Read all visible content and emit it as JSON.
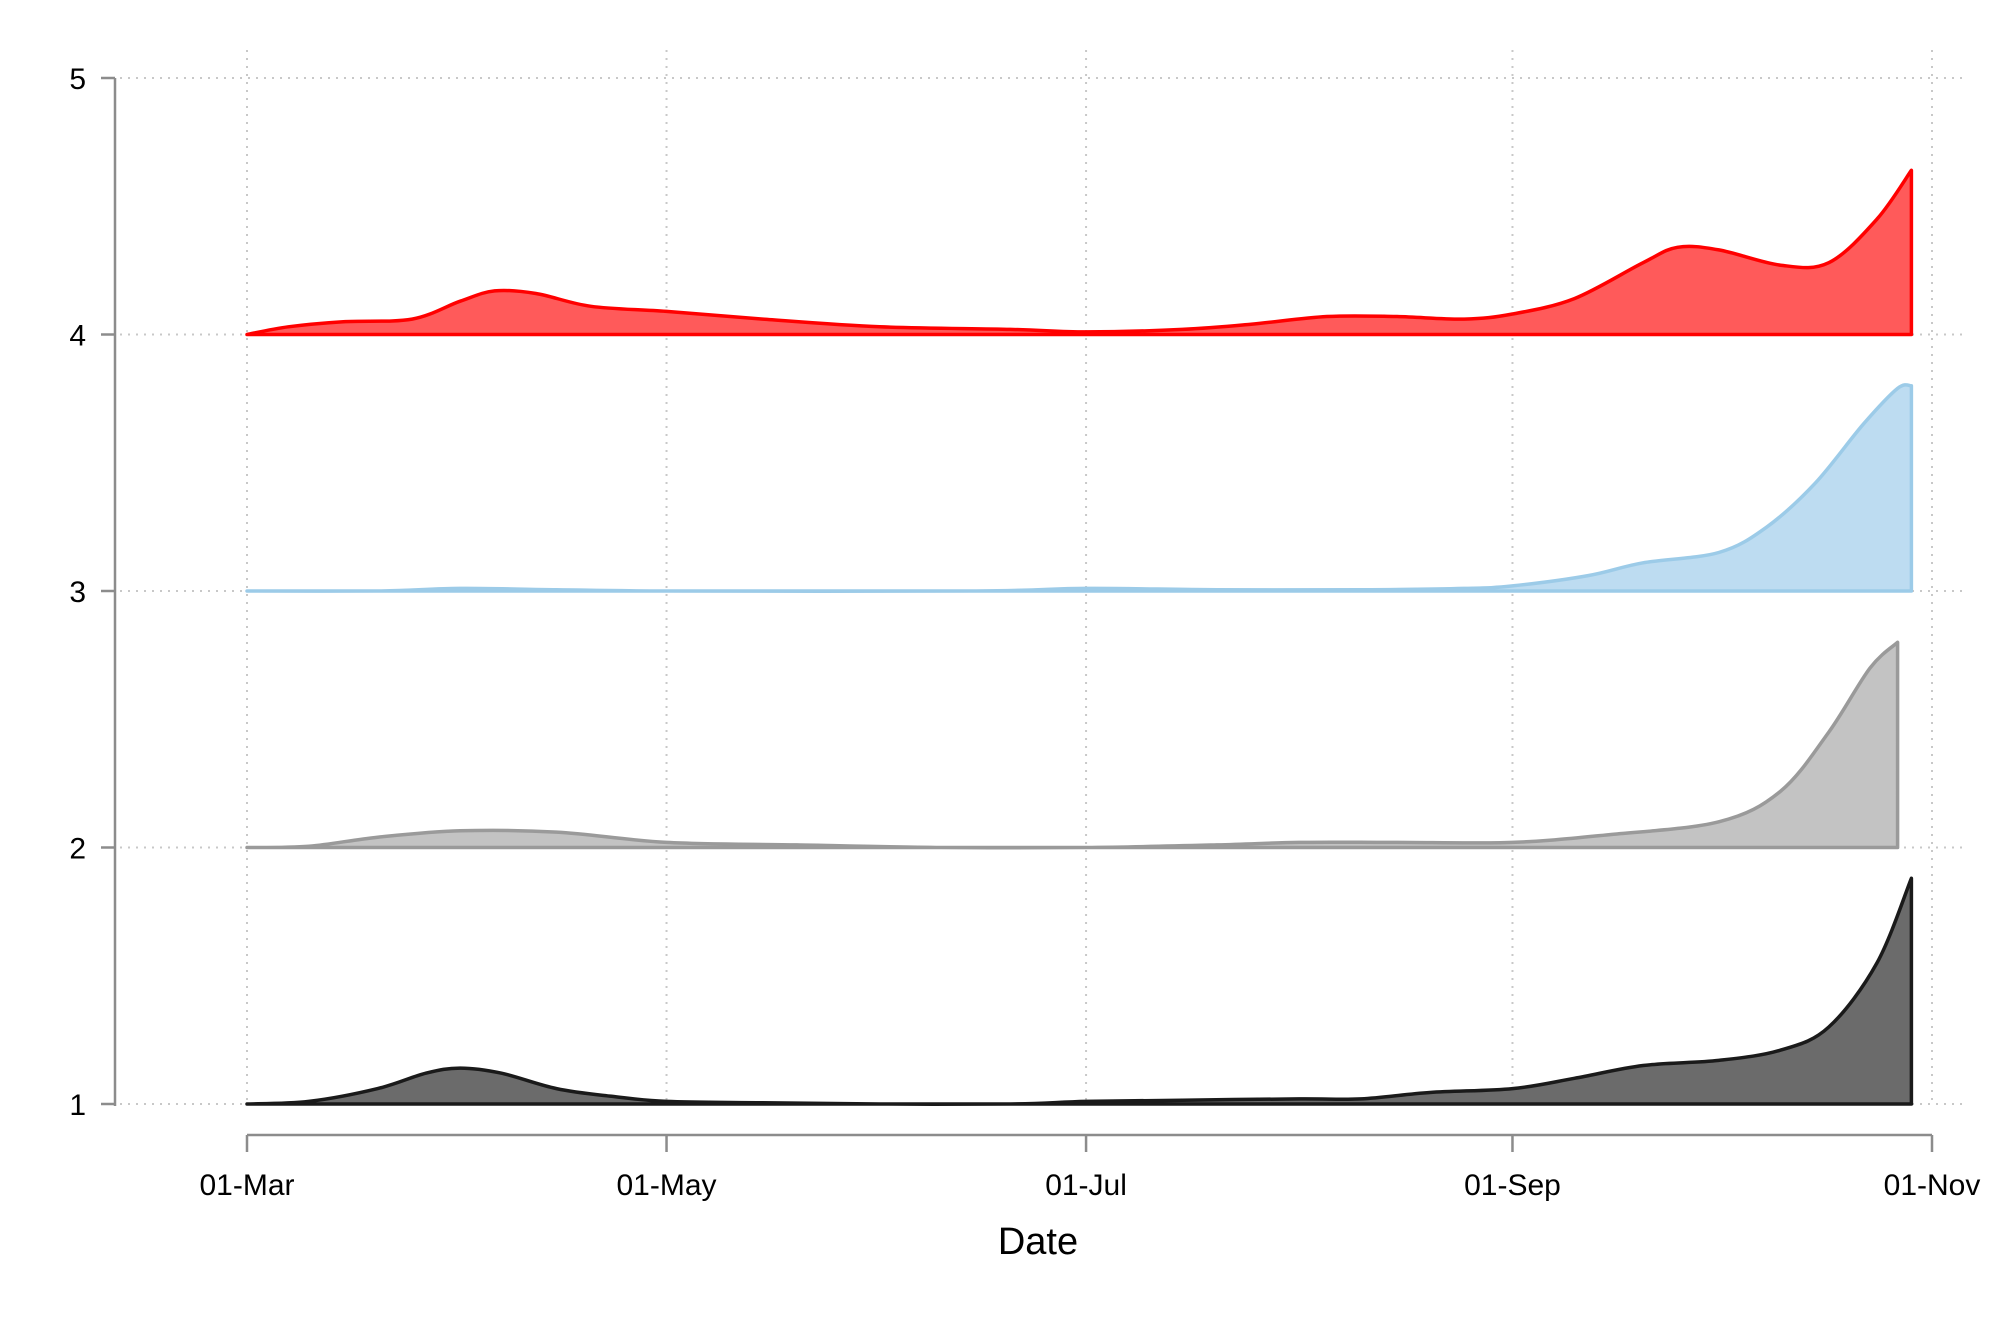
{
  "chart_data": {
    "type": "area",
    "title": "",
    "xlabel": "Date",
    "ylabel": "",
    "ylim": [
      1,
      5
    ],
    "yticks": [
      "1",
      "2",
      "3",
      "4",
      "5"
    ],
    "x_tick_labels": [
      "01-Mar",
      "01-May",
      "01-Jul",
      "01-Sep",
      "01-Nov"
    ],
    "x_tick_dates": [
      "2020-03-01",
      "2020-05-01",
      "2020-07-01",
      "2020-09-01",
      "2020-11-01"
    ],
    "grid": true,
    "legend": "none",
    "series": [
      {
        "baseline": 1,
        "fill": "#6b6b6b",
        "stroke": "#1a1a1a",
        "points": [
          [
            "2020-03-01",
            1.0
          ],
          [
            "2020-03-10",
            1.01
          ],
          [
            "2020-03-20",
            1.06
          ],
          [
            "2020-03-27",
            1.12
          ],
          [
            "2020-04-01",
            1.14
          ],
          [
            "2020-04-07",
            1.12
          ],
          [
            "2020-04-15",
            1.06
          ],
          [
            "2020-04-23",
            1.03
          ],
          [
            "2020-05-01",
            1.01
          ],
          [
            "2020-05-15",
            1.005
          ],
          [
            "2020-06-01",
            1.0
          ],
          [
            "2020-06-20",
            1.0
          ],
          [
            "2020-07-01",
            1.01
          ],
          [
            "2020-07-15",
            1.015
          ],
          [
            "2020-08-01",
            1.02
          ],
          [
            "2020-08-10",
            1.02
          ],
          [
            "2020-08-20",
            1.045
          ],
          [
            "2020-09-01",
            1.06
          ],
          [
            "2020-09-10",
            1.1
          ],
          [
            "2020-09-20",
            1.15
          ],
          [
            "2020-10-01",
            1.17
          ],
          [
            "2020-10-10",
            1.21
          ],
          [
            "2020-10-17",
            1.3
          ],
          [
            "2020-10-24",
            1.55
          ],
          [
            "2020-10-29",
            1.88
          ]
        ]
      },
      {
        "baseline": 2,
        "fill": "#c3c3c3",
        "stroke": "#9a9a9a",
        "points": [
          [
            "2020-03-01",
            2.0
          ],
          [
            "2020-03-10",
            2.005
          ],
          [
            "2020-03-20",
            2.04
          ],
          [
            "2020-04-01",
            2.065
          ],
          [
            "2020-04-15",
            2.06
          ],
          [
            "2020-05-01",
            2.02
          ],
          [
            "2020-05-20",
            2.01
          ],
          [
            "2020-06-10",
            2.0
          ],
          [
            "2020-07-01",
            2.0
          ],
          [
            "2020-07-20",
            2.01
          ],
          [
            "2020-08-01",
            2.02
          ],
          [
            "2020-08-15",
            2.02
          ],
          [
            "2020-09-01",
            2.02
          ],
          [
            "2020-09-15",
            2.05
          ],
          [
            "2020-10-01",
            2.1
          ],
          [
            "2020-10-10",
            2.22
          ],
          [
            "2020-10-17",
            2.45
          ],
          [
            "2020-10-23",
            2.7
          ],
          [
            "2020-10-27",
            2.8
          ]
        ]
      },
      {
        "baseline": 3,
        "fill": "#bddcf1",
        "stroke": "#9ccbe8",
        "points": [
          [
            "2020-03-01",
            3.0
          ],
          [
            "2020-03-20",
            3.0
          ],
          [
            "2020-04-01",
            3.01
          ],
          [
            "2020-04-15",
            3.005
          ],
          [
            "2020-05-01",
            3.0
          ],
          [
            "2020-06-15",
            3.0
          ],
          [
            "2020-07-01",
            3.01
          ],
          [
            "2020-07-20",
            3.005
          ],
          [
            "2020-08-10",
            3.005
          ],
          [
            "2020-08-25",
            3.01
          ],
          [
            "2020-09-01",
            3.02
          ],
          [
            "2020-09-12",
            3.06
          ],
          [
            "2020-09-20",
            3.11
          ],
          [
            "2020-10-01",
            3.15
          ],
          [
            "2020-10-08",
            3.25
          ],
          [
            "2020-10-15",
            3.42
          ],
          [
            "2020-10-22",
            3.65
          ],
          [
            "2020-10-27",
            3.79
          ],
          [
            "2020-10-29",
            3.8
          ]
        ]
      },
      {
        "baseline": 4,
        "fill": "#ff5a5a",
        "stroke": "#ff0000",
        "points": [
          [
            "2020-03-01",
            4.0
          ],
          [
            "2020-03-07",
            4.03
          ],
          [
            "2020-03-15",
            4.05
          ],
          [
            "2020-03-25",
            4.06
          ],
          [
            "2020-04-01",
            4.13
          ],
          [
            "2020-04-06",
            4.17
          ],
          [
            "2020-04-12",
            4.16
          ],
          [
            "2020-04-20",
            4.11
          ],
          [
            "2020-05-01",
            4.09
          ],
          [
            "2020-05-15",
            4.06
          ],
          [
            "2020-06-01",
            4.03
          ],
          [
            "2020-06-20",
            4.02
          ],
          [
            "2020-07-01",
            4.01
          ],
          [
            "2020-07-15",
            4.02
          ],
          [
            "2020-07-25",
            4.04
          ],
          [
            "2020-08-05",
            4.07
          ],
          [
            "2020-08-15",
            4.07
          ],
          [
            "2020-08-25",
            4.06
          ],
          [
            "2020-09-01",
            4.08
          ],
          [
            "2020-09-10",
            4.14
          ],
          [
            "2020-09-20",
            4.28
          ],
          [
            "2020-09-25",
            4.34
          ],
          [
            "2020-10-01",
            4.33
          ],
          [
            "2020-10-10",
            4.27
          ],
          [
            "2020-10-17",
            4.28
          ],
          [
            "2020-10-24",
            4.45
          ],
          [
            "2020-10-29",
            4.64
          ]
        ]
      }
    ]
  }
}
